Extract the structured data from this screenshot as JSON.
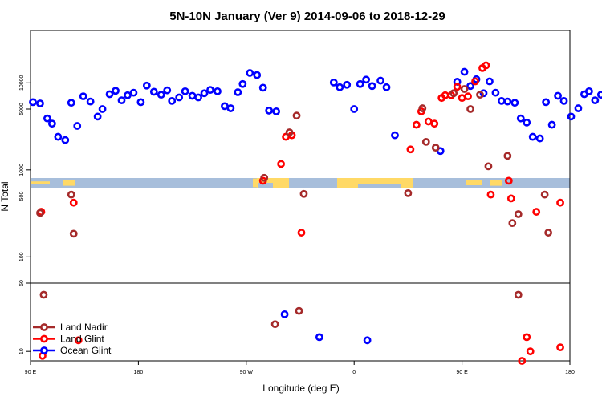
{
  "chart_data": {
    "type": "scatter",
    "title": "5N-10N January (Ver 9)   2014-09-06 to 2018-12-29",
    "xlabel": "Longitude (deg E)",
    "ylabel": "N Total",
    "x_ticks": [
      {
        "value": 90,
        "label": "90 E"
      },
      {
        "value": 180,
        "label": "180"
      },
      {
        "value": 270,
        "label": "90 W"
      },
      {
        "value": 360,
        "label": "0"
      },
      {
        "value": 450,
        "label": "90 E"
      },
      {
        "value": 540,
        "label": "180"
      }
    ],
    "xlim": [
      90,
      540
    ],
    "upper_panel": {
      "scale": "log",
      "ylim": [
        50,
        40000
      ],
      "y_ticks": [
        {
          "value": 100,
          "label": "100"
        },
        {
          "value": 500,
          "label": "500"
        },
        {
          "value": 1000,
          "label": "1000"
        },
        {
          "value": 5000,
          "label": "5000"
        },
        {
          "value": 10000,
          "label": "10000"
        }
      ]
    },
    "lower_panel": {
      "scale": "log",
      "ylim": [
        8,
        50
      ],
      "y_ticks": [
        {
          "value": 10,
          "label": "10"
        },
        {
          "value": 50,
          "label": "50"
        }
      ]
    },
    "map_strip": {
      "land_color": "#ffd966",
      "ocean_color": "#a7bedb"
    },
    "legend": {
      "position": "bottom-left",
      "entries": [
        {
          "name": "Land Nadir",
          "color": "#a52a2a"
        },
        {
          "name": "Land Glint",
          "color": "#ff0000"
        },
        {
          "name": "Ocean Glint",
          "color": "#0000ff"
        }
      ]
    },
    "series": [
      {
        "name": "Ocean Glint",
        "color": "#0000ff",
        "points": [
          [
            92,
            6000
          ],
          [
            98,
            5800
          ],
          [
            104,
            3900
          ],
          [
            108,
            3400
          ],
          [
            113,
            2400
          ],
          [
            119,
            2200
          ],
          [
            124,
            5900
          ],
          [
            129,
            3200
          ],
          [
            134,
            7000
          ],
          [
            140,
            6100
          ],
          [
            146,
            4100
          ],
          [
            150,
            5000
          ],
          [
            156,
            7400
          ],
          [
            161,
            8100
          ],
          [
            166,
            6300
          ],
          [
            171,
            7200
          ],
          [
            176,
            7700
          ],
          [
            182,
            6000
          ],
          [
            187,
            9300
          ],
          [
            193,
            7900
          ],
          [
            199,
            7300
          ],
          [
            204,
            8200
          ],
          [
            208,
            6200
          ],
          [
            214,
            6800
          ],
          [
            219,
            8000
          ],
          [
            225,
            7100
          ],
          [
            230,
            6800
          ],
          [
            235,
            7600
          ],
          [
            240,
            8300
          ],
          [
            246,
            8000
          ],
          [
            252,
            5400
          ],
          [
            257,
            5100
          ],
          [
            263,
            7800
          ],
          [
            267,
            9700
          ],
          [
            273,
            13000
          ],
          [
            279,
            12300
          ],
          [
            284,
            8800
          ],
          [
            289,
            4800
          ],
          [
            295,
            4700
          ],
          [
            343,
            10100
          ],
          [
            348,
            8900
          ],
          [
            354,
            9500
          ],
          [
            360,
            5000
          ],
          [
            365,
            9700
          ],
          [
            370,
            10900
          ],
          [
            375,
            9200
          ],
          [
            382,
            10600
          ],
          [
            387,
            8900
          ],
          [
            394,
            2500
          ],
          [
            432,
            1650
          ],
          [
            446,
            10300
          ],
          [
            452,
            13400
          ],
          [
            457,
            9200
          ],
          [
            462,
            11000
          ],
          [
            468,
            7600
          ],
          [
            473,
            10400
          ],
          [
            478,
            7700
          ],
          [
            483,
            6200
          ],
          [
            488,
            6100
          ],
          [
            494,
            5900
          ],
          [
            499,
            3900
          ],
          [
            504,
            3500
          ],
          [
            509,
            2400
          ],
          [
            515,
            2300
          ],
          [
            520,
            6000
          ],
          [
            525,
            3300
          ],
          [
            530,
            7100
          ],
          [
            535,
            6200
          ],
          [
            541,
            4100
          ],
          [
            547,
            5100
          ],
          [
            552,
            7400
          ],
          [
            556,
            8000
          ],
          [
            561,
            6300
          ],
          [
            566,
            7300
          ],
          [
            570,
            7700
          ],
          [
            576,
            6000
          ],
          [
            302,
            24
          ],
          [
            331,
            14
          ],
          [
            371,
            13
          ]
        ]
      },
      {
        "name": "Land Glint",
        "color": "#ff0000",
        "points": [
          [
            99,
            330
          ],
          [
            126,
            420
          ],
          [
            284,
            750
          ],
          [
            299,
            1170
          ],
          [
            303,
            2400
          ],
          [
            308,
            2500
          ],
          [
            316,
            190
          ],
          [
            407,
            1720
          ],
          [
            412,
            3300
          ],
          [
            416,
            4700
          ],
          [
            422,
            3600
          ],
          [
            427,
            3400
          ],
          [
            433,
            6700
          ],
          [
            436,
            7200
          ],
          [
            441,
            7200
          ],
          [
            446,
            9000
          ],
          [
            450,
            6700
          ],
          [
            455,
            7000
          ],
          [
            461,
            10400
          ],
          [
            467,
            14800
          ],
          [
            470,
            15900
          ],
          [
            474,
            520
          ],
          [
            489,
            750
          ],
          [
            491,
            470
          ],
          [
            512,
            330
          ],
          [
            532,
            420
          ],
          [
            100,
            9
          ],
          [
            130,
            13
          ],
          [
            500,
            8
          ],
          [
            504,
            14
          ],
          [
            507,
            10
          ],
          [
            532,
            11
          ]
        ]
      },
      {
        "name": "Land Nadir",
        "color": "#a52a2a",
        "points": [
          [
            98,
            320
          ],
          [
            124,
            520
          ],
          [
            126,
            185
          ],
          [
            285,
            810
          ],
          [
            306,
            2700
          ],
          [
            312,
            4200
          ],
          [
            318,
            530
          ],
          [
            405,
            540
          ],
          [
            417,
            5100
          ],
          [
            420,
            2100
          ],
          [
            428,
            1800
          ],
          [
            443,
            7600
          ],
          [
            452,
            8500
          ],
          [
            457,
            5000
          ],
          [
            465,
            7300
          ],
          [
            472,
            1100
          ],
          [
            488,
            1450
          ],
          [
            492,
            245
          ],
          [
            497,
            310
          ],
          [
            519,
            520
          ],
          [
            522,
            190
          ],
          [
            101,
            38
          ],
          [
            294,
            19
          ],
          [
            314,
            26
          ],
          [
            497,
            38
          ]
        ]
      }
    ]
  }
}
